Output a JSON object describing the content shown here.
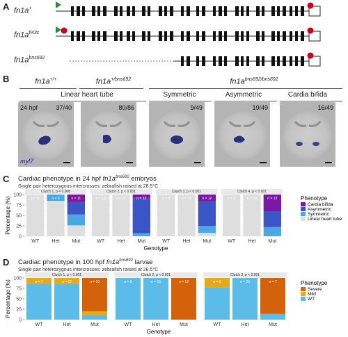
{
  "panel_a": {
    "letter": "A",
    "genes": [
      {
        "base": "fn1a",
        "sup": "+"
      },
      {
        "base": "fn1a",
        "sup": "tl43c"
      },
      {
        "base": "fn1a",
        "sup": "bns692"
      }
    ],
    "colors": {
      "start_marker": "#2e8b3c",
      "stop_marker": "#d0021b",
      "exon": "#111111"
    }
  },
  "panel_b": {
    "letter": "B",
    "genotypes": [
      {
        "base": "fn1a",
        "sup": "+/+"
      },
      {
        "base": "fn1a",
        "sup": "+/bns692"
      },
      {
        "base": "fn1a",
        "sup": "bns692/bns692"
      }
    ],
    "categories": [
      "Linear heart tube",
      "Symmetric",
      "Asymmetric",
      "Cardia bifida"
    ],
    "stage": "24 hpf",
    "stain_label": "myl7",
    "images": [
      {
        "count": "37/40"
      },
      {
        "count": "80/86"
      },
      {
        "count": "9/49"
      },
      {
        "count": "19/49"
      },
      {
        "count": "16/49"
      }
    ]
  },
  "panel_c": {
    "letter": "C",
    "title_pre": "Cardiac phenotype in 24 hpf ",
    "title_gene": "fn1a",
    "title_sup": "bns692",
    "title_post": " embryos",
    "subtitle": "Single pair heterozygous intercrosses; zebrafish raised at 28.5°C",
    "xlabel": "Genotype",
    "ylabel": "Percentage (%)",
    "legend_title": "Phenotype"
  },
  "panel_d": {
    "letter": "D",
    "title_pre": "Cardiac phenotype in 100 hpf ",
    "title_gene": "fn1a",
    "title_sup": "bns692",
    "title_post": " larvae",
    "subtitle": "Single pair heterozygous intercrosses; zebrafish raised at 28.5°C",
    "xlabel": "Genotype",
    "ylabel": "Percentage (%)",
    "legend_title": "Phenotype"
  },
  "chart_data": [
    {
      "type": "bar",
      "stacked": true,
      "facets": [
        "Clutch 1, p = 0.008",
        "Clutch 2, p < 0.001",
        "Clutch 3, p < 0.001",
        "Clutch 4, p < 0.001"
      ],
      "categories": [
        "WT",
        "Het",
        "Mut"
      ],
      "n_labels": [
        [
          "n = 4",
          "n = 6",
          "n = 11"
        ],
        [
          "n = 10",
          "n = 10",
          "n = 13"
        ],
        [
          "n = 4",
          "n = 15",
          "n = 12"
        ],
        [
          "n = 8",
          "n = 38",
          "n = 13"
        ]
      ],
      "series": [
        {
          "name": "Cardia bifida",
          "color": "#7b16a6",
          "values": [
            [
              0,
              0,
              18
            ],
            [
              0,
              0,
              8
            ],
            [
              0,
              0,
              17
            ],
            [
              0,
              0,
              40
            ]
          ]
        },
        {
          "name": "Asymmetric",
          "color": "#3a56c6",
          "values": [
            [
              0,
              0,
              30
            ],
            [
              0,
              0,
              85
            ],
            [
              0,
              0,
              58
            ],
            [
              0,
              0,
              38
            ]
          ]
        },
        {
          "name": "Symmetric",
          "color": "#48a8e4",
          "values": [
            [
              0,
              15,
              26
            ],
            [
              0,
              0,
              7
            ],
            [
              0,
              0,
              17
            ],
            [
              0,
              0,
              22
            ]
          ]
        },
        {
          "name": "Linear heart tube",
          "color": "#dedede",
          "values": [
            [
              100,
              85,
              26
            ],
            [
              100,
              100,
              0
            ],
            [
              100,
              100,
              8
            ],
            [
              100,
              100,
              0
            ]
          ]
        }
      ],
      "xlabel": "Genotype",
      "ylabel": "Percentage (%)",
      "yticks": [
        0,
        25,
        50,
        75,
        100
      ],
      "ylim": [
        0,
        100
      ],
      "legend_title": "Phenotype",
      "legend_position": "right"
    },
    {
      "type": "bar",
      "stacked": true,
      "facets": [
        "Clutch 1, p < 0.001",
        "Clutch 2, p < 0.001",
        "Clutch 3, p < 0.001"
      ],
      "categories": [
        "WT",
        "Het",
        "Mut"
      ],
      "n_labels": [
        [
          "n = 7",
          "n = 22",
          "n = 10"
        ],
        [
          "n = 9",
          "n = 15",
          "n = 12"
        ],
        [
          "n = 9",
          "n = 25",
          "n = 7"
        ]
      ],
      "series": [
        {
          "name": "Severe",
          "color": "#d4620a",
          "values": [
            [
              0,
              0,
              80
            ],
            [
              0,
              0,
              100
            ],
            [
              0,
              0,
              86
            ]
          ]
        },
        {
          "name": "Mild",
          "color": "#e6a91c",
          "values": [
            [
              14,
              14,
              10
            ],
            [
              0,
              0,
              0
            ],
            [
              22,
              0,
              0
            ]
          ]
        },
        {
          "name": "WT",
          "color": "#5bbce9",
          "values": [
            [
              86,
              86,
              10
            ],
            [
              100,
              100,
              0
            ],
            [
              78,
              100,
              14
            ]
          ]
        }
      ],
      "xlabel": "Genotype",
      "ylabel": "Percentage (%)",
      "yticks": [
        0,
        25,
        50,
        75,
        100
      ],
      "ylim": [
        0,
        100
      ],
      "legend_title": "Phenotype",
      "legend_position": "right"
    }
  ]
}
